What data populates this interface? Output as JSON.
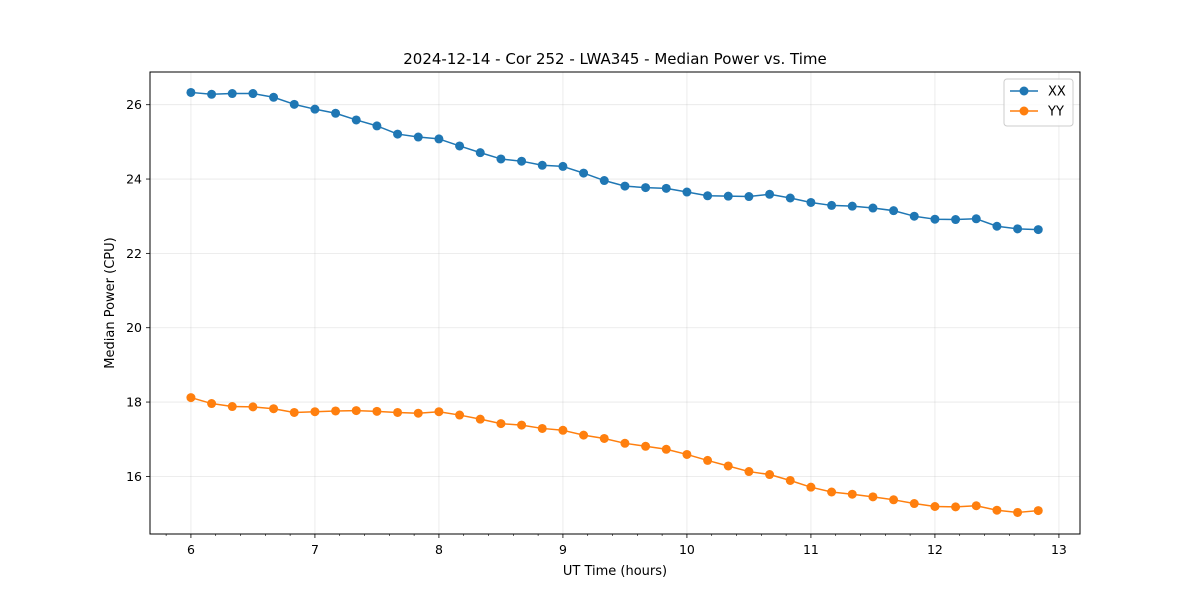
{
  "chart_data": {
    "type": "line",
    "title": "2024-12-14 - Cor 252 - LWA345 - Median Power vs. Time",
    "xlabel": "UT Time (hours)",
    "ylabel": "Median Power (CPU)",
    "xlim": [
      5.67,
      13.17
    ],
    "ylim": [
      14.45,
      26.88
    ],
    "xticks": [
      6,
      7,
      8,
      9,
      10,
      11,
      12,
      13
    ],
    "xtick_labels": [
      "6",
      "7",
      "8",
      "9",
      "10",
      "11",
      "12",
      "13"
    ],
    "yticks": [
      16,
      18,
      20,
      22,
      24,
      26
    ],
    "ytick_labels": [
      "16",
      "18",
      "20",
      "22",
      "24",
      "26"
    ],
    "grid": true,
    "legend_position": "top-right",
    "x": [
      6.0,
      6.1667,
      6.3333,
      6.5,
      6.6667,
      6.8333,
      7.0,
      7.1667,
      7.3333,
      7.5,
      7.6667,
      7.8333,
      8.0,
      8.1667,
      8.3333,
      8.5,
      8.6667,
      8.8333,
      9.0,
      9.1667,
      9.3333,
      9.5,
      9.6667,
      9.8333,
      10.0,
      10.1667,
      10.3333,
      10.5,
      10.6667,
      10.8333,
      11.0,
      11.1667,
      11.3333,
      11.5,
      11.6667,
      11.8333,
      12.0,
      12.1667,
      12.3333,
      12.5,
      12.6667,
      12.8333
    ],
    "series": [
      {
        "name": "XX",
        "color": "#1f77b4",
        "values": [
          26.33,
          26.28,
          26.3,
          26.3,
          26.2,
          26.01,
          25.88,
          25.77,
          25.59,
          25.43,
          25.21,
          25.13,
          25.08,
          24.89,
          24.71,
          24.54,
          24.48,
          24.37,
          24.34,
          24.16,
          23.96,
          23.81,
          23.77,
          23.75,
          23.65,
          23.55,
          23.54,
          23.53,
          23.59,
          23.49,
          23.37,
          23.29,
          23.27,
          23.22,
          23.15,
          23.0,
          22.92,
          22.91,
          22.93,
          22.73,
          22.66,
          22.64
        ]
      },
      {
        "name": "YY",
        "color": "#ff7f0e",
        "values": [
          18.12,
          17.96,
          17.88,
          17.87,
          17.82,
          17.72,
          17.74,
          17.76,
          17.77,
          17.75,
          17.72,
          17.7,
          17.74,
          17.65,
          17.54,
          17.42,
          17.38,
          17.29,
          17.24,
          17.11,
          17.02,
          16.89,
          16.81,
          16.73,
          16.59,
          16.43,
          16.28,
          16.13,
          16.05,
          15.89,
          15.71,
          15.58,
          15.52,
          15.45,
          15.37,
          15.27,
          15.19,
          15.18,
          15.21,
          15.09,
          15.03,
          15.08
        ]
      }
    ]
  }
}
